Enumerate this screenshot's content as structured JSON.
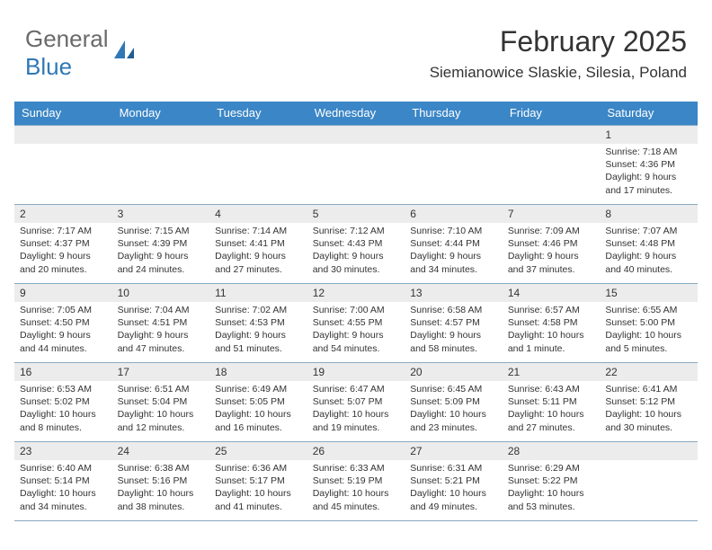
{
  "brand": {
    "part1": "General",
    "part2": "Blue"
  },
  "title": "February 2025",
  "location": "Siemianowice Slaskie, Silesia, Poland",
  "colors": {
    "header_bg": "#3b86c6",
    "header_text": "#ffffff",
    "daynum_bg": "#ececec",
    "border": "#88a9c2",
    "logo_gray": "#6a6a6a",
    "logo_blue": "#2f78b6",
    "text": "#333333",
    "background": "#ffffff"
  },
  "day_headers": [
    "Sunday",
    "Monday",
    "Tuesday",
    "Wednesday",
    "Thursday",
    "Friday",
    "Saturday"
  ],
  "weeks": [
    [
      null,
      null,
      null,
      null,
      null,
      null,
      {
        "n": "1",
        "sr": "7:18 AM",
        "ss": "4:36 PM",
        "dl": "9 hours and 17 minutes."
      }
    ],
    [
      {
        "n": "2",
        "sr": "7:17 AM",
        "ss": "4:37 PM",
        "dl": "9 hours and 20 minutes."
      },
      {
        "n": "3",
        "sr": "7:15 AM",
        "ss": "4:39 PM",
        "dl": "9 hours and 24 minutes."
      },
      {
        "n": "4",
        "sr": "7:14 AM",
        "ss": "4:41 PM",
        "dl": "9 hours and 27 minutes."
      },
      {
        "n": "5",
        "sr": "7:12 AM",
        "ss": "4:43 PM",
        "dl": "9 hours and 30 minutes."
      },
      {
        "n": "6",
        "sr": "7:10 AM",
        "ss": "4:44 PM",
        "dl": "9 hours and 34 minutes."
      },
      {
        "n": "7",
        "sr": "7:09 AM",
        "ss": "4:46 PM",
        "dl": "9 hours and 37 minutes."
      },
      {
        "n": "8",
        "sr": "7:07 AM",
        "ss": "4:48 PM",
        "dl": "9 hours and 40 minutes."
      }
    ],
    [
      {
        "n": "9",
        "sr": "7:05 AM",
        "ss": "4:50 PM",
        "dl": "9 hours and 44 minutes."
      },
      {
        "n": "10",
        "sr": "7:04 AM",
        "ss": "4:51 PM",
        "dl": "9 hours and 47 minutes."
      },
      {
        "n": "11",
        "sr": "7:02 AM",
        "ss": "4:53 PM",
        "dl": "9 hours and 51 minutes."
      },
      {
        "n": "12",
        "sr": "7:00 AM",
        "ss": "4:55 PM",
        "dl": "9 hours and 54 minutes."
      },
      {
        "n": "13",
        "sr": "6:58 AM",
        "ss": "4:57 PM",
        "dl": "9 hours and 58 minutes."
      },
      {
        "n": "14",
        "sr": "6:57 AM",
        "ss": "4:58 PM",
        "dl": "10 hours and 1 minute."
      },
      {
        "n": "15",
        "sr": "6:55 AM",
        "ss": "5:00 PM",
        "dl": "10 hours and 5 minutes."
      }
    ],
    [
      {
        "n": "16",
        "sr": "6:53 AM",
        "ss": "5:02 PM",
        "dl": "10 hours and 8 minutes."
      },
      {
        "n": "17",
        "sr": "6:51 AM",
        "ss": "5:04 PM",
        "dl": "10 hours and 12 minutes."
      },
      {
        "n": "18",
        "sr": "6:49 AM",
        "ss": "5:05 PM",
        "dl": "10 hours and 16 minutes."
      },
      {
        "n": "19",
        "sr": "6:47 AM",
        "ss": "5:07 PM",
        "dl": "10 hours and 19 minutes."
      },
      {
        "n": "20",
        "sr": "6:45 AM",
        "ss": "5:09 PM",
        "dl": "10 hours and 23 minutes."
      },
      {
        "n": "21",
        "sr": "6:43 AM",
        "ss": "5:11 PM",
        "dl": "10 hours and 27 minutes."
      },
      {
        "n": "22",
        "sr": "6:41 AM",
        "ss": "5:12 PM",
        "dl": "10 hours and 30 minutes."
      }
    ],
    [
      {
        "n": "23",
        "sr": "6:40 AM",
        "ss": "5:14 PM",
        "dl": "10 hours and 34 minutes."
      },
      {
        "n": "24",
        "sr": "6:38 AM",
        "ss": "5:16 PM",
        "dl": "10 hours and 38 minutes."
      },
      {
        "n": "25",
        "sr": "6:36 AM",
        "ss": "5:17 PM",
        "dl": "10 hours and 41 minutes."
      },
      {
        "n": "26",
        "sr": "6:33 AM",
        "ss": "5:19 PM",
        "dl": "10 hours and 45 minutes."
      },
      {
        "n": "27",
        "sr": "6:31 AM",
        "ss": "5:21 PM",
        "dl": "10 hours and 49 minutes."
      },
      {
        "n": "28",
        "sr": "6:29 AM",
        "ss": "5:22 PM",
        "dl": "10 hours and 53 minutes."
      },
      null
    ]
  ],
  "labels": {
    "sunrise": "Sunrise:",
    "sunset": "Sunset:",
    "daylight": "Daylight:"
  }
}
